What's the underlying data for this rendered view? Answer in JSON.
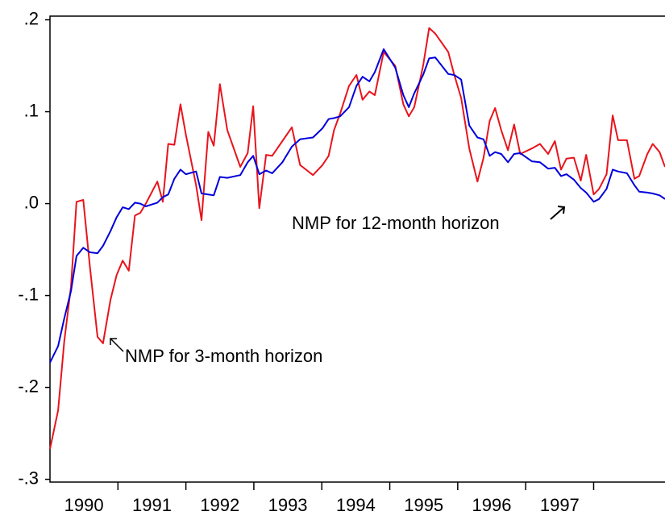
{
  "chart_data": {
    "type": "line",
    "xlim": [
      1990,
      1999.05
    ],
    "ylim": [
      -0.303,
      0.204
    ],
    "xticks": [
      {
        "value": 1990.5,
        "label": "1990"
      },
      {
        "value": 1991.5,
        "label": "1991"
      },
      {
        "value": 1992.5,
        "label": "1992"
      },
      {
        "value": 1993.5,
        "label": "1993"
      },
      {
        "value": 1994.5,
        "label": "1994"
      },
      {
        "value": 1995.5,
        "label": "1995"
      },
      {
        "value": 1996.5,
        "label": "1996"
      },
      {
        "value": 1997.5,
        "label": "1997"
      }
    ],
    "yticks": [
      {
        "value": 0.2,
        "label": ".2"
      },
      {
        "value": 0.1,
        "label": ".1"
      },
      {
        "value": 0,
        "label": ".0"
      },
      {
        "value": -0.1,
        "label": "-.1"
      },
      {
        "value": -0.2,
        "label": "-.2"
      },
      {
        "value": -0.3,
        "label": "-.3"
      }
    ],
    "x": [
      1990.0,
      1990.12,
      1990.21,
      1990.31,
      1990.39,
      1990.49,
      1990.59,
      1990.7,
      1990.78,
      1990.89,
      1990.98,
      1991.07,
      1991.16,
      1991.25,
      1991.33,
      1991.41,
      1991.58,
      1991.66,
      1991.74,
      1991.83,
      1991.92,
      1992.0,
      1992.15,
      1992.23,
      1992.33,
      1992.41,
      1992.5,
      1992.61,
      1992.8,
      1992.91,
      1992.99,
      1993.08,
      1993.18,
      1993.27,
      1993.42,
      1993.56,
      1993.68,
      1993.87,
      1994.01,
      1994.1,
      1994.18,
      1994.27,
      1994.4,
      1994.51,
      1994.6,
      1994.7,
      1994.78,
      1994.91,
      1995.08,
      1995.2,
      1995.28,
      1995.36,
      1995.49,
      1995.58,
      1995.67,
      1995.86,
      1995.95,
      1996.05,
      1996.17,
      1996.29,
      1996.38,
      1996.47,
      1996.55,
      1996.64,
      1996.74,
      1996.83,
      1996.92,
      1997.09,
      1997.21,
      1997.33,
      1997.43,
      1997.52,
      1997.6,
      1997.71,
      1997.81,
      1997.89,
      1998.0,
      1998.08,
      1998.19,
      1998.28,
      1998.36,
      1998.49,
      1998.6,
      1998.67,
      1998.79,
      1998.87,
      1998.97,
      1999.05
    ],
    "series": [
      {
        "color": "#e8141c",
        "values": [
          -0.267,
          -0.225,
          -0.15,
          -0.09,
          0.002,
          0.004,
          -0.07,
          -0.145,
          -0.152,
          -0.105,
          -0.078,
          -0.062,
          -0.073,
          -0.013,
          -0.01,
          0.0,
          0.024,
          0.002,
          0.065,
          0.064,
          0.108,
          0.075,
          0.02,
          -0.018,
          0.078,
          0.063,
          0.13,
          0.08,
          0.04,
          0.055,
          0.106,
          -0.005,
          0.053,
          0.052,
          0.068,
          0.083,
          0.042,
          0.031,
          0.042,
          0.052,
          0.08,
          0.098,
          0.128,
          0.14,
          0.113,
          0.122,
          0.118,
          0.165,
          0.15,
          0.108,
          0.095,
          0.105,
          0.15,
          0.191,
          0.185,
          0.165,
          0.14,
          0.115,
          0.06,
          0.024,
          0.05,
          0.09,
          0.104,
          0.08,
          0.058,
          0.086,
          0.054,
          0.06,
          0.065,
          0.054,
          0.068,
          0.037,
          0.049,
          0.05,
          0.025,
          0.053,
          0.01,
          0.016,
          0.032,
          0.096,
          0.069,
          0.069,
          0.027,
          0.03,
          0.054,
          0.065,
          0.056,
          0.04
        ]
      },
      {
        "color": "#0000dc",
        "values": [
          -0.173,
          -0.155,
          -0.125,
          -0.095,
          -0.057,
          -0.048,
          -0.053,
          -0.054,
          -0.046,
          -0.03,
          -0.015,
          -0.004,
          -0.006,
          0.001,
          0.0,
          -0.003,
          0.001,
          0.007,
          0.01,
          0.027,
          0.037,
          0.032,
          0.035,
          0.011,
          0.01,
          0.009,
          0.029,
          0.028,
          0.031,
          0.045,
          0.052,
          0.032,
          0.036,
          0.033,
          0.045,
          0.062,
          0.07,
          0.072,
          0.082,
          0.092,
          0.093,
          0.095,
          0.105,
          0.128,
          0.138,
          0.133,
          0.143,
          0.168,
          0.148,
          0.118,
          0.105,
          0.12,
          0.14,
          0.158,
          0.159,
          0.141,
          0.14,
          0.135,
          0.085,
          0.072,
          0.07,
          0.052,
          0.056,
          0.054,
          0.045,
          0.054,
          0.055,
          0.046,
          0.045,
          0.038,
          0.039,
          0.03,
          0.032,
          0.026,
          0.017,
          0.012,
          0.002,
          0.005,
          0.016,
          0.037,
          0.035,
          0.033,
          0.02,
          0.013,
          0.012,
          0.011,
          0.009,
          0.005
        ]
      }
    ],
    "annotations": [
      {
        "text": "NMP for 12-month horizon"
      },
      {
        "text": "NMP for 3-month horizon"
      }
    ]
  }
}
